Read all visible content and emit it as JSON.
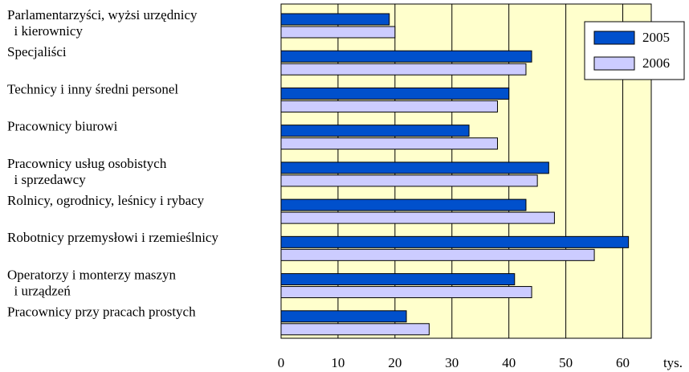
{
  "chart_data": {
    "type": "bar",
    "orientation": "horizontal",
    "categories": [
      "Parlamentarzyści, wyżsi urzędnicy\n  i kierownicy",
      "Specjaliści",
      "Technicy i inny średni personel",
      "Pracownicy biurowi",
      "Pracownicy usług osobistych\n  i sprzedawcy",
      "Rolnicy, ogrodnicy, leśnicy i rybacy",
      "Robotnicy przemysłowi i rzemieślnicy",
      "Operatorzy i monterzy maszyn\n  i urządzeń",
      "Pracownicy przy pracach prostych"
    ],
    "series": [
      {
        "name": "2005",
        "color": "#0050cc",
        "values": [
          19,
          44,
          40,
          33,
          47,
          43,
          61,
          41,
          22
        ]
      },
      {
        "name": "2006",
        "color": "#ccccff",
        "values": [
          20,
          43,
          38,
          38,
          45,
          48,
          55,
          44,
          26
        ]
      }
    ],
    "x_label": "tys.",
    "xlim": [
      0,
      65
    ],
    "xticks": [
      0,
      10,
      20,
      30,
      40,
      50,
      60
    ],
    "grid": true,
    "plot_background": "#ffffcc",
    "legend": "top-right"
  }
}
